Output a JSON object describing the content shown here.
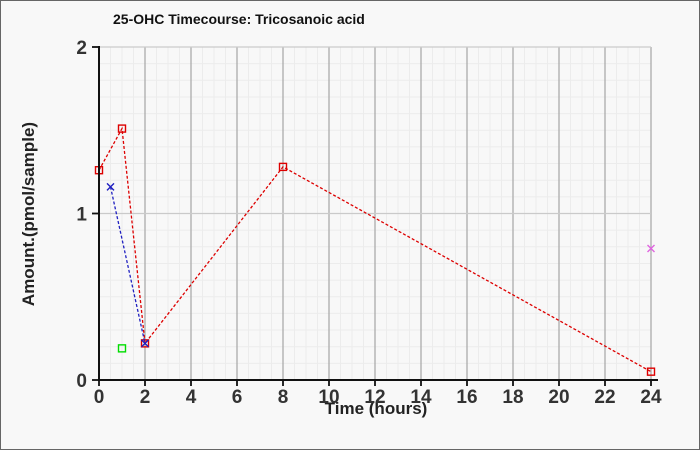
{
  "chart_data": {
    "type": "line",
    "title": "25-OHC Timecourse: Tricosanoic acid",
    "xlabel": "Time (hours)",
    "ylabel": "Amount.(pmol/sample)",
    "xlim": [
      0,
      24
    ],
    "ylim": [
      0,
      2
    ],
    "x_ticks": [
      0,
      2,
      4,
      6,
      8,
      10,
      12,
      14,
      16,
      18,
      20,
      22,
      24
    ],
    "y_ticks": [
      0,
      1,
      2
    ],
    "x_minor_step": 0.5,
    "y_minor_step": 0.1,
    "grid": true,
    "legend": false,
    "series": [
      {
        "name": "red-timecourse",
        "color": "#dd0000",
        "marker": "open-square",
        "line": "dashed",
        "points": [
          [
            0,
            1.26
          ],
          [
            1,
            1.51
          ],
          [
            2,
            0.22
          ],
          [
            8,
            1.28
          ],
          [
            24,
            0.05
          ]
        ]
      },
      {
        "name": "blue-timecourse",
        "color": "#2020c0",
        "marker": "x",
        "line": "dashed",
        "points": [
          [
            0.5,
            1.16
          ],
          [
            2,
            0.22
          ]
        ]
      },
      {
        "name": "green-point",
        "color": "#00dd00",
        "marker": "open-square",
        "line": "none",
        "points": [
          [
            1,
            0.19
          ]
        ]
      },
      {
        "name": "magenta-point",
        "color": "#e066e0",
        "marker": "x",
        "line": "none",
        "points": [
          [
            24,
            0.79
          ]
        ]
      }
    ],
    "palette": {
      "background": "#f8f8f8",
      "frame_border": "#666666",
      "axis": "#111111",
      "tick_label": "#333333",
      "grid_minor": "#ececec",
      "grid_major_vertical": "#a6a6a6",
      "grid_major_horizontal": "#cacaca"
    }
  }
}
